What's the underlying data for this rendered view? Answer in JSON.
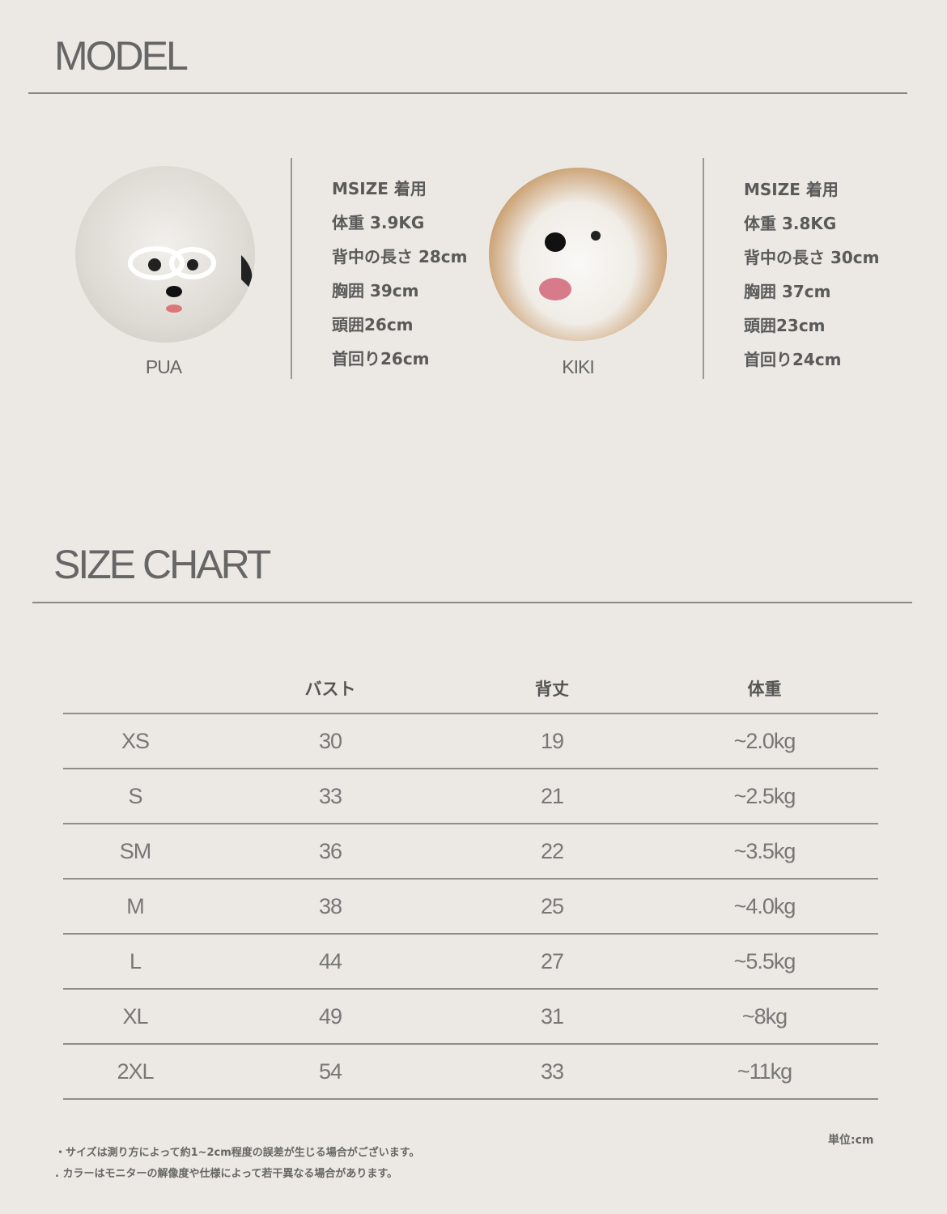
{
  "model": {
    "title": "MODEL",
    "dogs": [
      {
        "name": "PUA",
        "specs": [
          "MSIZE 着用",
          "体重 3.9KG",
          "背中の長さ 28cm",
          "胸囲 39cm",
          "頭囲26cm",
          "首回り26cm"
        ]
      },
      {
        "name": "KIKI",
        "specs": [
          "MSIZE 着用",
          "体重 3.8KG",
          "背中の長さ 30cm",
          "胸囲 37cm",
          "頭囲23cm",
          "首回り24cm"
        ]
      }
    ]
  },
  "size_chart": {
    "title": "SIZE CHART",
    "headers": [
      "",
      "バスト",
      "背丈",
      "体重"
    ],
    "rows": [
      [
        "XS",
        "30",
        "19",
        "~2.0kg"
      ],
      [
        "S",
        "33",
        "21",
        "~2.5kg"
      ],
      [
        "SM",
        "36",
        "22",
        "~3.5kg"
      ],
      [
        "M",
        "38",
        "25",
        "~4.0kg"
      ],
      [
        "L",
        "44",
        "27",
        "~5.5kg"
      ],
      [
        "XL",
        "49",
        "31",
        "~8kg"
      ],
      [
        "2XL",
        "54",
        "33",
        "~11kg"
      ]
    ],
    "unit": "単位:cm",
    "notes": [
      "・サイズは測り方によって約1~2cm程度の誤差が生じる場合がございます。",
      ". カラーはモニターの解像度や仕様によって若干異なる場合があります。"
    ]
  }
}
